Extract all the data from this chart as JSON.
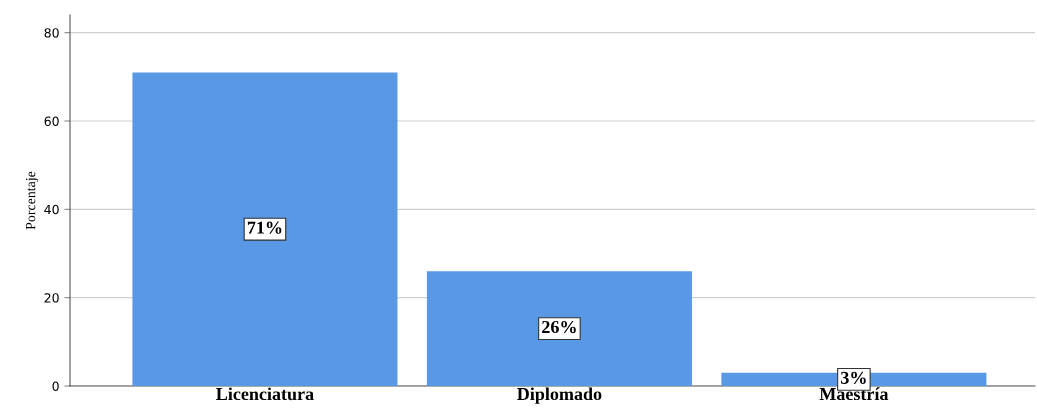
{
  "chart_data": {
    "type": "bar",
    "ylabel": "Porcentaje",
    "categories": [
      "Licenciatura",
      "Diplomado",
      "Maestría"
    ],
    "values": [
      71,
      26,
      3
    ],
    "value_labels": [
      "71%",
      "26%",
      "3%"
    ],
    "color": "#5898e4",
    "ylim": [
      0,
      84
    ],
    "yticks": [
      0,
      20,
      40,
      60,
      80
    ],
    "grid": "y"
  }
}
